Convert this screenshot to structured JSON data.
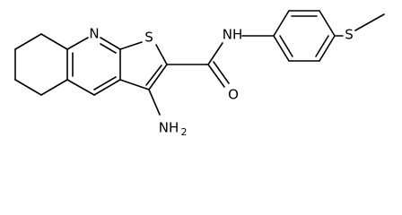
{
  "atoms": {
    "pyridine_n": "N",
    "thiophene_s": "S",
    "amide_nh": "NH",
    "carbonyl_o": "O",
    "amine": {
      "text": "NH",
      "subscript": "2"
    },
    "thioether_s": "S"
  }
}
